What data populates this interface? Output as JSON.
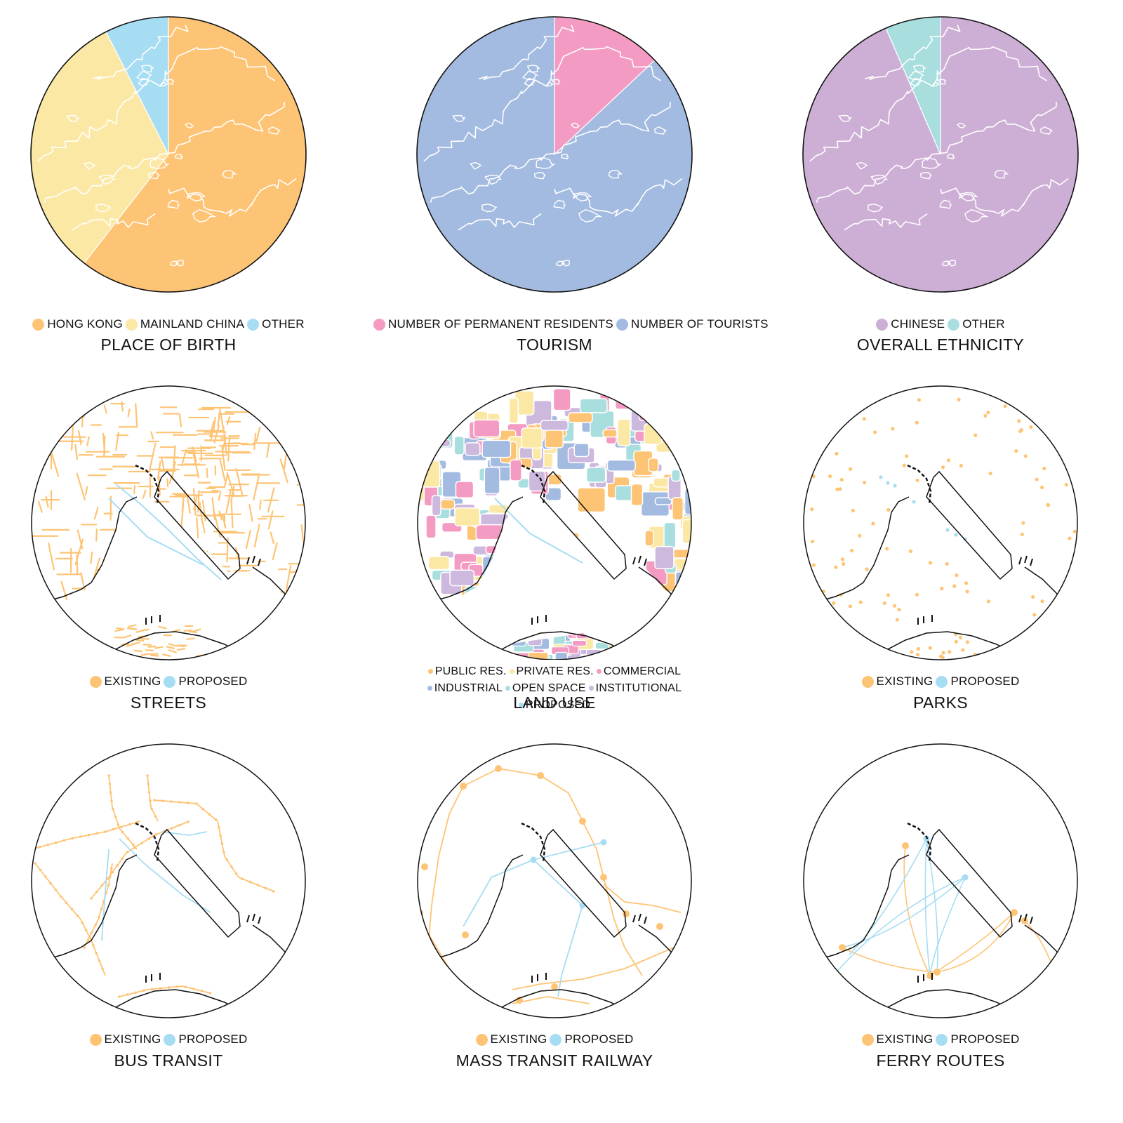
{
  "colors": {
    "orange": "#FEC475",
    "yellow": "#FBE8A5",
    "blue": "#A7DDF3",
    "pink": "#F49BC3",
    "slate": "#A3BBE0",
    "lilac": "#CDAFD6",
    "teal": "#A9DEDF",
    "lavender": "#CDB8DE"
  },
  "panels": [
    {
      "title": "PLACE OF BIRTH",
      "legend": [
        {
          "label": "HONG KONG",
          "color": "#FEC475"
        },
        {
          "label": "MAINLAND CHINA",
          "color": "#FBE8A5"
        },
        {
          "label": "OTHER",
          "color": "#A7DDF3"
        }
      ],
      "chart_data": {
        "type": "pie",
        "slices": [
          {
            "label": "HONG KONG",
            "value": 60.5
          },
          {
            "label": "MAINLAND CHINA",
            "value": 32
          },
          {
            "label": "OTHER",
            "value": 7.5
          }
        ]
      }
    },
    {
      "title": "TOURISM",
      "legend": [
        {
          "label": "NUMBER OF PERMANENT RESIDENTS",
          "color": "#F49BC3"
        },
        {
          "label": "NUMBER OF TOURISTS",
          "color": "#A3BBE0"
        }
      ],
      "chart_data": {
        "type": "pie",
        "slices": [
          {
            "label": "NUMBER OF PERMANENT RESIDENTS",
            "value": 13
          },
          {
            "label": "NUMBER OF TOURISTS",
            "value": 87
          }
        ]
      }
    },
    {
      "title": "OVERALL ETHNICITY",
      "legend": [
        {
          "label": "CHINESE",
          "color": "#CDAFD6"
        },
        {
          "label": "OTHER",
          "color": "#A9DEDF"
        }
      ],
      "chart_data": {
        "type": "pie",
        "slices": [
          {
            "label": "CHINESE",
            "value": 93.5
          },
          {
            "label": "OTHER",
            "value": 6.5
          }
        ]
      }
    },
    {
      "title": "STREETS",
      "legend": [
        {
          "label": "EXISTING",
          "color": "#FEC475"
        },
        {
          "label": "PROPOSED",
          "color": "#A7DDF3"
        }
      ]
    },
    {
      "title": "LAND USE",
      "legend": [
        {
          "label": "PUBLIC RES.",
          "color": "#FEC475"
        },
        {
          "label": "PRIVATE RES.",
          "color": "#FBE8A5"
        },
        {
          "label": "COMMERCIAL",
          "color": "#F49BC3"
        },
        {
          "label": "INDUSTRIAL",
          "color": "#A3BBE0"
        },
        {
          "label": "OPEN SPACE",
          "color": "#A9DEDF"
        },
        {
          "label": "INSTITUTIONAL",
          "color": "#CDB8DE"
        },
        {
          "label": "PROPOSED",
          "color": "#A7DDF3"
        }
      ]
    },
    {
      "title": "PARKS",
      "legend": [
        {
          "label": "EXISTING",
          "color": "#FEC475"
        },
        {
          "label": "PROPOSED",
          "color": "#A7DDF3"
        }
      ]
    },
    {
      "title": "BUS TRANSIT",
      "legend": [
        {
          "label": "EXISTING",
          "color": "#FEC475"
        },
        {
          "label": "PROPOSED",
          "color": "#A7DDF3"
        }
      ]
    },
    {
      "title": "MASS TRANSIT RAILWAY",
      "legend": [
        {
          "label": "EXISTING",
          "color": "#FEC475"
        },
        {
          "label": "PROPOSED",
          "color": "#A7DDF3"
        }
      ]
    },
    {
      "title": "FERRY ROUTES",
      "legend": [
        {
          "label": "EXISTING",
          "color": "#FEC475"
        },
        {
          "label": "PROPOSED",
          "color": "#A7DDF3"
        }
      ]
    }
  ]
}
